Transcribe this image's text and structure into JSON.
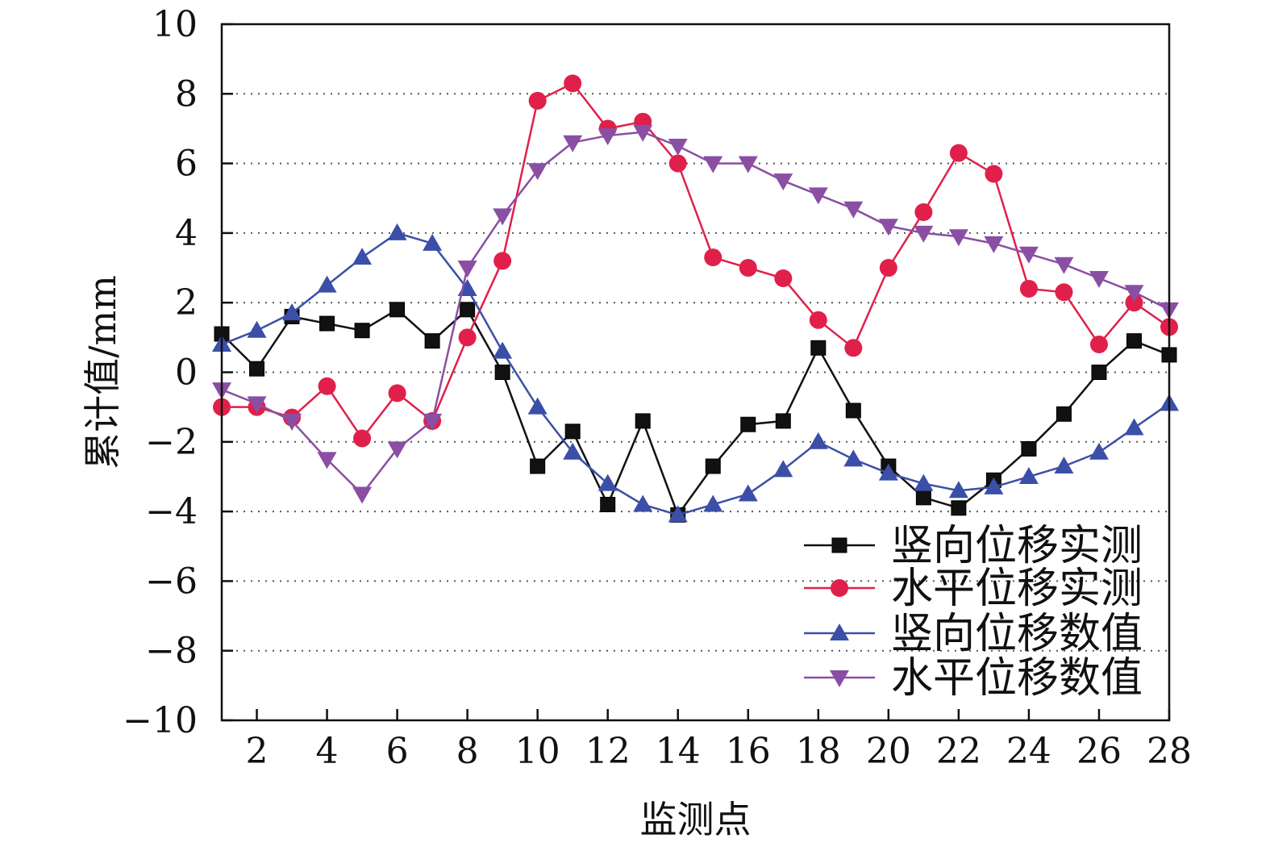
{
  "chart_data": {
    "type": "line",
    "title": "",
    "xlabel": "监测点",
    "ylabel": "累计值/mm",
    "xlim": [
      1,
      28
    ],
    "ylim": [
      -10,
      10
    ],
    "x_ticks": [
      "2",
      "4",
      "6",
      "8",
      "10",
      "12",
      "14",
      "16",
      "18",
      "20",
      "22",
      "24",
      "26",
      "28"
    ],
    "y_ticks": [
      "10",
      "8",
      "6",
      "4",
      "2",
      "0",
      "−2",
      "−4",
      "−6",
      "−8",
      "−10"
    ],
    "grid": "horizontal-dotted",
    "legend_position": "bottom-right",
    "x": [
      1,
      2,
      3,
      4,
      5,
      6,
      7,
      8,
      9,
      10,
      11,
      12,
      13,
      14,
      15,
      16,
      17,
      18,
      19,
      20,
      21,
      22,
      23,
      24,
      25,
      26,
      27,
      28
    ],
    "series": [
      {
        "name": "竖向位移实测",
        "color": "#111111",
        "marker": "square",
        "values": [
          1.1,
          0.1,
          1.6,
          1.4,
          1.2,
          1.8,
          0.9,
          1.8,
          0.0,
          -2.7,
          -1.7,
          -3.8,
          -1.4,
          -4.1,
          -2.7,
          -1.5,
          -1.4,
          0.7,
          -1.1,
          -2.7,
          -3.6,
          -3.9,
          -3.1,
          -2.2,
          -1.2,
          0.0,
          0.9,
          0.5
        ]
      },
      {
        "name": "水平位移实测",
        "color": "#e0204a",
        "marker": "circle",
        "values": [
          -1.0,
          -1.0,
          -1.3,
          -0.4,
          -1.9,
          -0.6,
          -1.4,
          1.0,
          3.2,
          7.8,
          8.3,
          7.0,
          7.2,
          6.0,
          3.3,
          3.0,
          2.7,
          1.5,
          0.7,
          3.0,
          4.6,
          6.3,
          5.7,
          2.4,
          2.3,
          0.8,
          2.0,
          1.3
        ]
      },
      {
        "name": "竖向位移数值",
        "color": "#3b4fa8",
        "marker": "triangle-up",
        "values": [
          0.8,
          1.2,
          1.7,
          2.5,
          3.3,
          4.0,
          3.7,
          2.4,
          0.6,
          -1.0,
          -2.3,
          -3.2,
          -3.8,
          -4.1,
          -3.8,
          -3.5,
          -2.8,
          -2.0,
          -2.5,
          -2.9,
          -3.2,
          -3.4,
          -3.3,
          -3.0,
          -2.7,
          -2.3,
          -1.6,
          -0.9
        ]
      },
      {
        "name": "水平位移数值",
        "color": "#8a4fa3",
        "marker": "triangle-down",
        "values": [
          -0.5,
          -0.9,
          -1.4,
          -2.5,
          -3.5,
          -2.2,
          -1.4,
          3.0,
          4.5,
          5.8,
          6.6,
          6.8,
          6.9,
          6.5,
          6.0,
          6.0,
          5.5,
          5.1,
          4.7,
          4.2,
          4.0,
          3.9,
          3.7,
          3.4,
          3.1,
          2.7,
          2.3,
          1.8
        ]
      }
    ]
  }
}
